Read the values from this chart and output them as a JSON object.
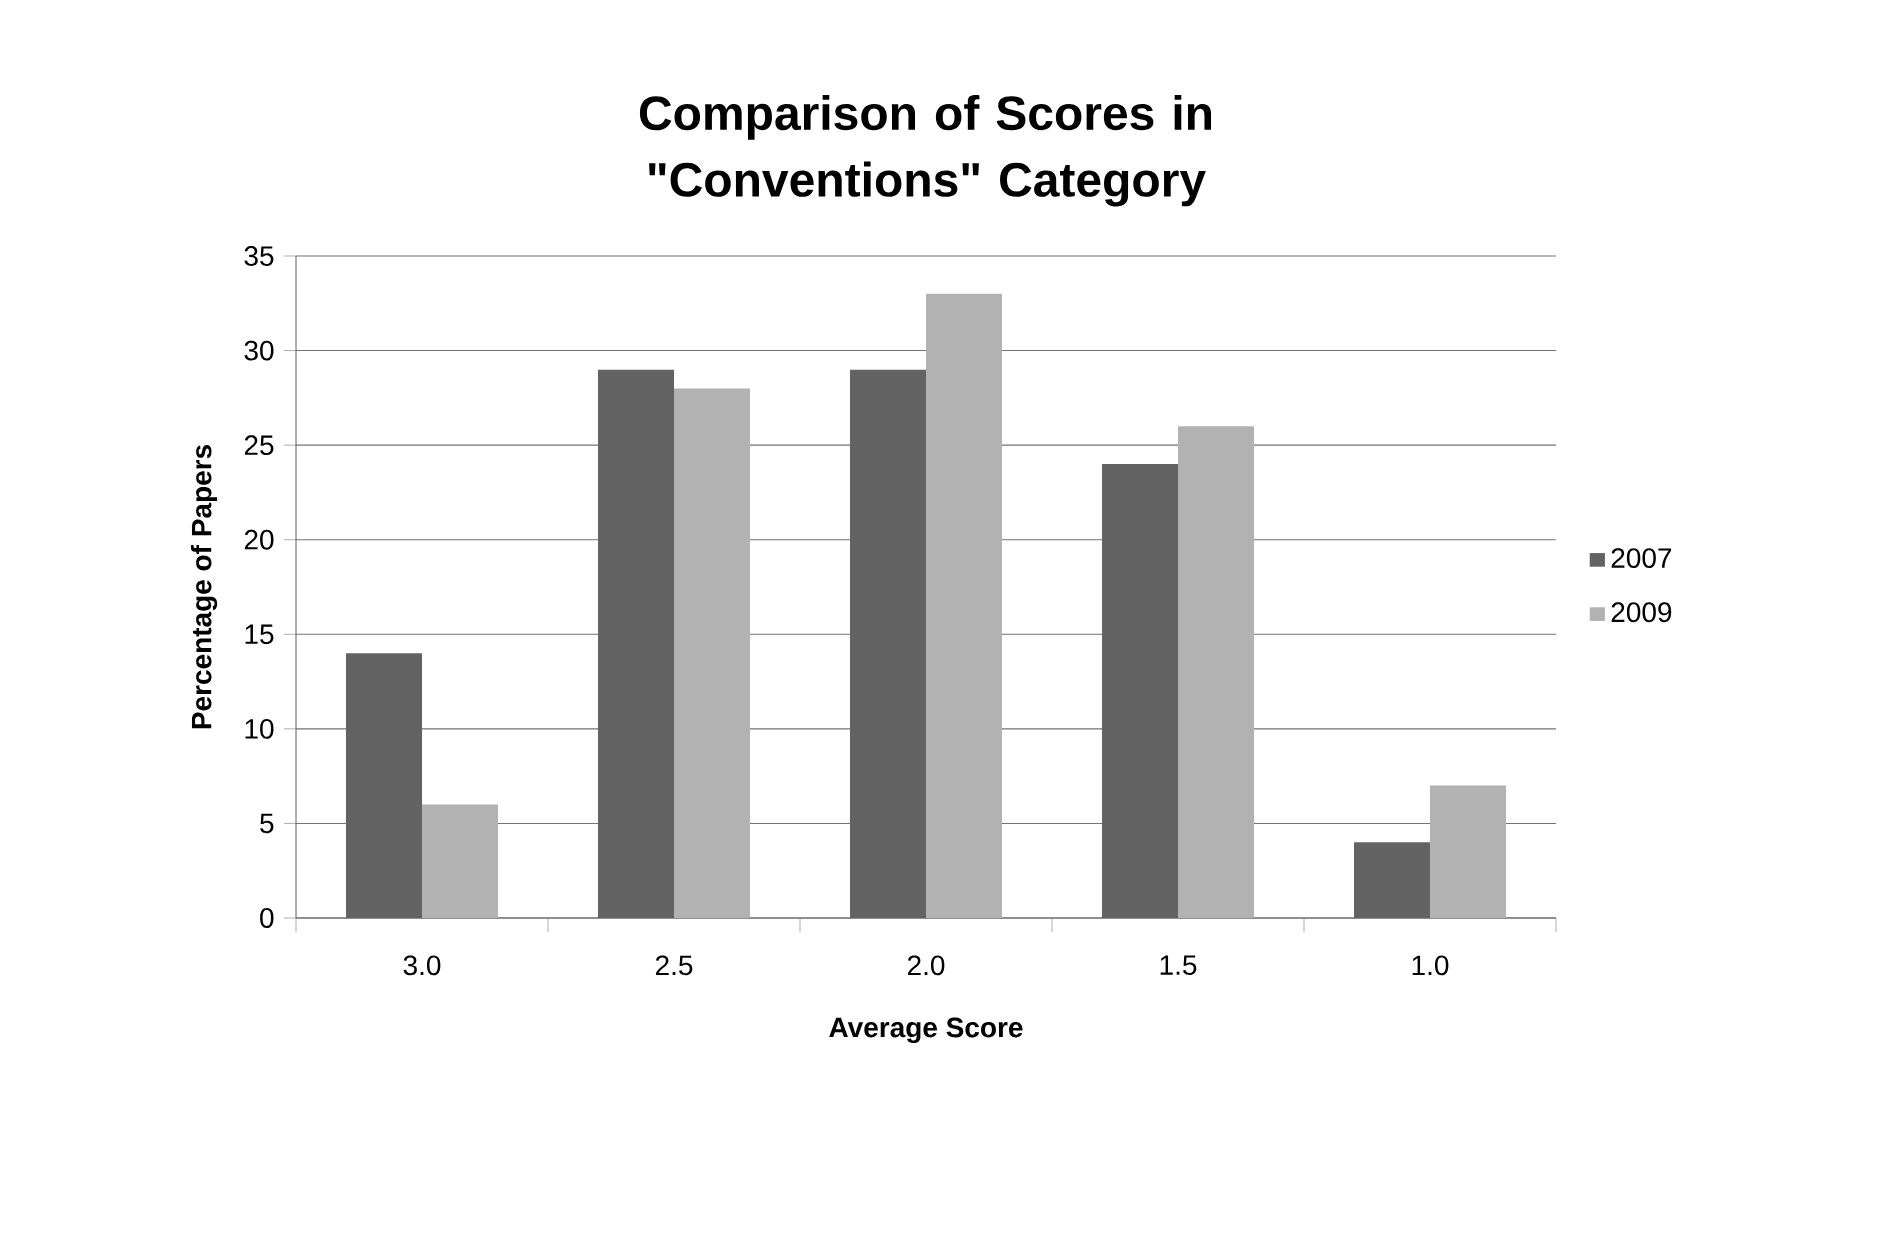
{
  "chart_data": {
    "type": "bar",
    "title": "Comparison of Scores in \"Conventions\" Category",
    "xlabel": "Average Score",
    "ylabel": "Percentage of Papers",
    "categories": [
      "3.0",
      "2.5",
      "2.0",
      "1.5",
      "1.0"
    ],
    "series": [
      {
        "name": "2007",
        "color": "#636363",
        "values": [
          14,
          29,
          29,
          24,
          4
        ]
      },
      {
        "name": "2009",
        "color": "#b2b2b2",
        "values": [
          6,
          28,
          33,
          26,
          7
        ]
      }
    ],
    "ylim": [
      0,
      35
    ],
    "yticks": [
      0,
      5,
      10,
      15,
      20,
      25,
      30,
      35
    ],
    "grid": "y",
    "legend": "right"
  }
}
